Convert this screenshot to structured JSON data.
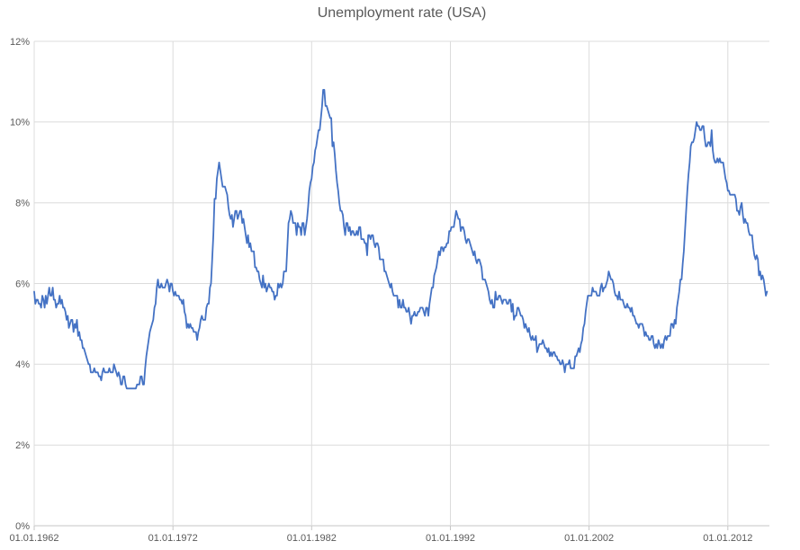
{
  "chart_data": {
    "type": "line",
    "title": "Unemployment rate (USA)",
    "xlabel": "",
    "ylabel": "",
    "legend_position": "none",
    "grid": "horizontal 2% steps and vertical 10-year steps, light gray",
    "y_axis": {
      "range": [
        0,
        12
      ],
      "tick_values": [
        0,
        2,
        4,
        6,
        8,
        10,
        12
      ],
      "tick_labels": [
        "0%",
        "2%",
        "4%",
        "6%",
        "8%",
        "10%",
        "12%"
      ]
    },
    "x_axis": {
      "tick_years": [
        1962,
        1972,
        1982,
        1992,
        2002,
        2012
      ],
      "tick_labels": [
        "01.01.1962",
        "01.01.1972",
        "01.01.1982",
        "01.01.1992",
        "01.01.2002",
        "01.01.2012"
      ]
    },
    "colors": {
      "line": "#4472C4",
      "gridline": "#DCDCDC",
      "axis_line": "#C6C6C6",
      "tick_text": "#595959",
      "title_text": "#595959",
      "background": "#FFFFFF"
    },
    "series": [
      {
        "name": "Unemployment rate (USA)",
        "unit": "%",
        "frequency": "monthly",
        "start": "01.01.1962",
        "end": "01.11.2014",
        "values_by_year": {
          "1962": [
            5.8,
            5.5,
            5.6,
            5.6,
            5.5,
            5.5,
            5.4,
            5.7,
            5.6,
            5.4,
            5.7,
            5.5
          ],
          "1963": [
            5.7,
            5.9,
            5.7,
            5.7,
            5.9,
            5.6,
            5.6,
            5.4,
            5.5,
            5.5,
            5.7,
            5.5
          ],
          "1964": [
            5.6,
            5.4,
            5.4,
            5.3,
            5.1,
            5.2,
            4.9,
            5.0,
            5.1,
            5.1,
            4.8,
            5.0
          ],
          "1965": [
            4.9,
            5.1,
            4.7,
            4.8,
            4.6,
            4.6,
            4.4,
            4.4,
            4.3,
            4.2,
            4.1,
            4.0
          ],
          "1966": [
            4.0,
            3.8,
            3.8,
            3.8,
            3.9,
            3.8,
            3.8,
            3.8,
            3.7,
            3.7,
            3.6,
            3.8
          ],
          "1967": [
            3.9,
            3.8,
            3.8,
            3.8,
            3.8,
            3.9,
            3.8,
            3.8,
            3.8,
            4.0,
            3.9,
            3.8
          ],
          "1968": [
            3.7,
            3.8,
            3.7,
            3.5,
            3.5,
            3.7,
            3.7,
            3.5,
            3.4,
            3.4,
            3.4,
            3.4
          ],
          "1969": [
            3.4,
            3.4,
            3.4,
            3.4,
            3.4,
            3.5,
            3.5,
            3.5,
            3.7,
            3.7,
            3.5,
            3.5
          ],
          "1970": [
            3.9,
            4.2,
            4.4,
            4.6,
            4.8,
            4.9,
            5.0,
            5.1,
            5.4,
            5.5,
            5.9,
            6.1
          ],
          "1971": [
            5.9,
            5.9,
            6.0,
            5.9,
            5.9,
            5.9,
            6.0,
            6.1,
            6.0,
            5.8,
            6.0,
            6.0
          ],
          "1972": [
            5.8,
            5.7,
            5.8,
            5.7,
            5.7,
            5.7,
            5.6,
            5.6,
            5.5,
            5.6,
            5.3,
            5.2
          ],
          "1973": [
            4.9,
            5.0,
            4.9,
            5.0,
            4.9,
            4.9,
            4.8,
            4.8,
            4.8,
            4.6,
            4.8,
            4.9
          ],
          "1974": [
            5.1,
            5.2,
            5.1,
            5.1,
            5.1,
            5.4,
            5.5,
            5.5,
            5.9,
            6.0,
            6.6,
            7.2
          ],
          "1975": [
            8.1,
            8.1,
            8.6,
            8.8,
            9.0,
            8.8,
            8.6,
            8.4,
            8.4,
            8.4,
            8.3,
            8.2
          ],
          "1976": [
            7.9,
            7.7,
            7.6,
            7.7,
            7.4,
            7.6,
            7.8,
            7.8,
            7.6,
            7.7,
            7.8,
            7.8
          ],
          "1977": [
            7.5,
            7.6,
            7.4,
            7.2,
            7.0,
            7.2,
            6.9,
            7.0,
            6.8,
            6.8,
            6.8,
            6.4
          ],
          "1978": [
            6.4,
            6.3,
            6.3,
            6.1,
            6.0,
            5.9,
            6.2,
            5.9,
            6.0,
            5.8,
            5.9,
            6.0
          ],
          "1979": [
            5.9,
            5.9,
            5.8,
            5.8,
            5.6,
            5.7,
            5.7,
            6.0,
            5.9,
            6.0,
            5.9,
            6.0
          ],
          "1980": [
            6.3,
            6.3,
            6.3,
            6.9,
            7.5,
            7.6,
            7.8,
            7.7,
            7.5,
            7.5,
            7.5,
            7.2
          ],
          "1981": [
            7.5,
            7.4,
            7.4,
            7.2,
            7.5,
            7.5,
            7.2,
            7.4,
            7.6,
            7.9,
            8.3,
            8.5
          ],
          "1982": [
            8.6,
            8.9,
            9.0,
            9.3,
            9.4,
            9.6,
            9.8,
            9.8,
            10.1,
            10.4,
            10.8,
            10.8
          ],
          "1983": [
            10.4,
            10.4,
            10.3,
            10.2,
            10.1,
            10.1,
            9.4,
            9.5,
            9.2,
            8.8,
            8.5,
            8.3
          ],
          "1984": [
            8.0,
            7.8,
            7.8,
            7.7,
            7.4,
            7.2,
            7.5,
            7.5,
            7.3,
            7.4,
            7.2,
            7.3
          ],
          "1985": [
            7.3,
            7.2,
            7.2,
            7.3,
            7.2,
            7.4,
            7.4,
            7.1,
            7.1,
            7.1,
            7.0,
            7.0
          ],
          "1986": [
            6.7,
            7.2,
            7.2,
            7.1,
            7.2,
            7.2,
            7.0,
            6.9,
            7.0,
            7.0,
            6.9,
            6.6
          ],
          "1987": [
            6.6,
            6.6,
            6.6,
            6.3,
            6.3,
            6.2,
            6.1,
            6.0,
            5.9,
            6.0,
            5.8,
            5.7
          ],
          "1988": [
            5.7,
            5.7,
            5.7,
            5.4,
            5.6,
            5.4,
            5.4,
            5.6,
            5.4,
            5.4,
            5.3,
            5.3
          ],
          "1989": [
            5.4,
            5.2,
            5.0,
            5.2,
            5.2,
            5.3,
            5.2,
            5.2,
            5.3,
            5.3,
            5.4,
            5.4
          ],
          "1990": [
            5.4,
            5.3,
            5.2,
            5.4,
            5.4,
            5.2,
            5.5,
            5.7,
            5.9,
            5.9,
            6.2,
            6.3
          ],
          "1991": [
            6.4,
            6.6,
            6.8,
            6.7,
            6.9,
            6.9,
            6.8,
            6.9,
            6.9,
            7.0,
            7.0,
            7.3
          ],
          "1992": [
            7.3,
            7.4,
            7.4,
            7.4,
            7.6,
            7.8,
            7.7,
            7.6,
            7.6,
            7.3,
            7.4,
            7.4
          ],
          "1993": [
            7.3,
            7.1,
            7.0,
            7.1,
            7.1,
            7.0,
            6.9,
            6.8,
            6.7,
            6.8,
            6.6,
            6.5
          ],
          "1994": [
            6.6,
            6.6,
            6.5,
            6.4,
            6.1,
            6.1,
            6.1,
            6.0,
            5.9,
            5.8,
            5.6,
            5.5
          ],
          "1995": [
            5.6,
            5.4,
            5.4,
            5.8,
            5.6,
            5.6,
            5.7,
            5.7,
            5.6,
            5.5,
            5.6,
            5.6
          ],
          "1996": [
            5.6,
            5.5,
            5.5,
            5.6,
            5.6,
            5.3,
            5.5,
            5.1,
            5.2,
            5.2,
            5.4,
            5.4
          ],
          "1997": [
            5.3,
            5.2,
            5.2,
            5.1,
            4.9,
            5.0,
            4.9,
            4.8,
            4.9,
            4.7,
            4.6,
            4.7
          ],
          "1998": [
            4.6,
            4.6,
            4.7,
            4.3,
            4.4,
            4.5,
            4.5,
            4.5,
            4.6,
            4.5,
            4.4,
            4.4
          ],
          "1999": [
            4.3,
            4.4,
            4.2,
            4.3,
            4.2,
            4.3,
            4.3,
            4.2,
            4.2,
            4.1,
            4.1,
            4.0
          ],
          "2000": [
            4.0,
            4.1,
            4.0,
            3.8,
            4.0,
            4.0,
            4.0,
            4.1,
            3.9,
            3.9,
            3.9,
            3.9
          ],
          "2001": [
            4.2,
            4.2,
            4.3,
            4.4,
            4.3,
            4.5,
            4.6,
            4.9,
            5.0,
            5.3,
            5.5,
            5.7
          ],
          "2002": [
            5.7,
            5.7,
            5.7,
            5.9,
            5.8,
            5.8,
            5.8,
            5.7,
            5.7,
            5.7,
            5.9,
            6.0
          ],
          "2003": [
            5.8,
            5.9,
            5.9,
            6.0,
            6.1,
            6.3,
            6.2,
            6.1,
            6.1,
            6.0,
            5.8,
            5.7
          ],
          "2004": [
            5.7,
            5.6,
            5.8,
            5.6,
            5.6,
            5.6,
            5.5,
            5.4,
            5.4,
            5.5,
            5.4,
            5.4
          ],
          "2005": [
            5.3,
            5.4,
            5.2,
            5.2,
            5.1,
            5.0,
            5.0,
            4.9,
            5.0,
            5.0,
            5.0,
            4.9
          ],
          "2006": [
            4.7,
            4.8,
            4.7,
            4.7,
            4.6,
            4.6,
            4.7,
            4.7,
            4.5,
            4.4,
            4.5,
            4.4
          ],
          "2007": [
            4.6,
            4.5,
            4.4,
            4.5,
            4.4,
            4.6,
            4.7,
            4.6,
            4.7,
            4.7,
            4.7,
            5.0
          ],
          "2008": [
            5.0,
            4.9,
            5.1,
            5.0,
            5.4,
            5.6,
            5.8,
            6.1,
            6.1,
            6.5,
            6.8,
            7.3
          ],
          "2009": [
            7.8,
            8.3,
            8.7,
            9.0,
            9.4,
            9.5,
            9.5,
            9.6,
            9.8,
            10.0,
            9.9,
            9.9
          ],
          "2010": [
            9.8,
            9.8,
            9.9,
            9.9,
            9.6,
            9.4,
            9.4,
            9.5,
            9.5,
            9.4,
            9.8,
            9.3
          ],
          "2011": [
            9.1,
            9.0,
            9.0,
            9.1,
            9.0,
            9.1,
            9.0,
            9.0,
            9.0,
            8.8,
            8.6,
            8.5
          ],
          "2012": [
            8.3,
            8.3,
            8.2,
            8.2,
            8.2,
            8.2,
            8.2,
            8.1,
            7.8,
            7.8,
            7.7,
            7.9
          ],
          "2013": [
            8.0,
            7.7,
            7.5,
            7.6,
            7.5,
            7.5,
            7.3,
            7.2,
            7.2,
            7.2,
            6.9,
            6.7
          ],
          "2014": [
            6.6,
            6.7,
            6.6,
            6.2,
            6.3,
            6.1,
            6.2,
            6.1,
            5.9,
            5.7,
            5.8
          ]
        }
      }
    ]
  }
}
